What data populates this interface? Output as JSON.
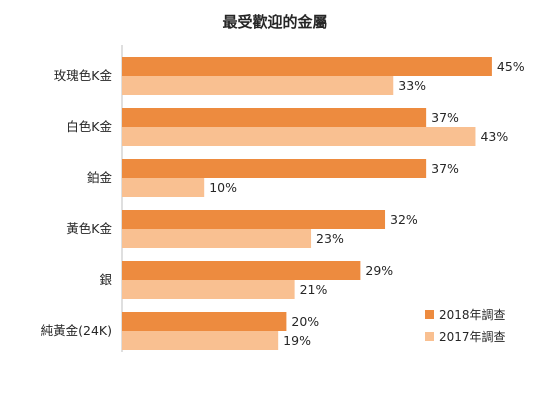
{
  "chart_data": {
    "type": "bar",
    "orientation": "horizontal",
    "title": "最受歡迎的金屬",
    "categories": [
      "玫瑰色K金",
      "白色K金",
      "鉑金",
      "黃色K金",
      "銀",
      "純黃金(24K)"
    ],
    "series": [
      {
        "name": "2018年調查",
        "values": [
          45,
          37,
          37,
          32,
          29,
          20
        ],
        "color": "#ED8B3F"
      },
      {
        "name": "2017年調查",
        "values": [
          33,
          43,
          10,
          23,
          21,
          19
        ],
        "color": "#F9C091"
      }
    ],
    "value_suffix": "%",
    "xlim": [
      0,
      50
    ],
    "grid": false,
    "legend_position": "bottom-right"
  }
}
